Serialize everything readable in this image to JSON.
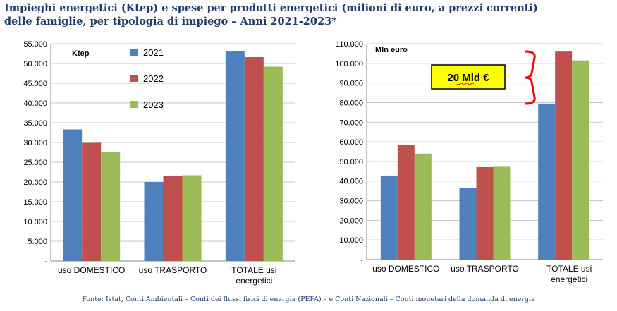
{
  "title_line1": "Impieghi energetici (Ktep) e spese per prodotti energetici (milioni di euro, a prezzi correnti)",
  "title_line2": "delle famiglie, per tipologia di impiego – Anni 2021-2023*",
  "source": "Fonte: Istat, Conti Ambientali – Conti dei flussi fisici di energia (PEFA) – e Conti Nazionali – Conti monetari della domanda di energia",
  "annotation": "20 Mld €",
  "colors": {
    "2021": "#4f81bd",
    "2022": "#c0504d",
    "2023": "#9bbb59",
    "brace": "#ff0000",
    "callout_bg": "#ffff00"
  },
  "chart_data": [
    {
      "type": "bar",
      "unit_label": "Ktep",
      "categories": [
        "uso DOMESTICO",
        "uso TRASPORTO",
        "TOTALE usi energetici"
      ],
      "series": [
        {
          "name": "2021",
          "values": [
            33300,
            20000,
            53100
          ]
        },
        {
          "name": "2022",
          "values": [
            29900,
            21600,
            51600
          ]
        },
        {
          "name": "2023",
          "values": [
            27500,
            21700,
            49200
          ]
        }
      ],
      "ylim": [
        0,
        55000
      ],
      "yticks": [
        "-",
        "5.000",
        "10.000",
        "15.000",
        "20.000",
        "25.000",
        "30.000",
        "35.000",
        "40.000",
        "45.000",
        "50.000",
        "55.000"
      ],
      "legend": "top-left",
      "grid": true
    },
    {
      "type": "bar",
      "unit_label": "Mln euro",
      "categories": [
        "uso DOMESTICO",
        "uso TRASPORTO",
        "TOTALE usi energetici"
      ],
      "series": [
        {
          "name": "2021",
          "values": [
            42800,
            36400,
            79500
          ]
        },
        {
          "name": "2022",
          "values": [
            58600,
            47100,
            106000
          ]
        },
        {
          "name": "2023",
          "values": [
            54000,
            47300,
            101500
          ]
        }
      ],
      "ylim": [
        0,
        110000
      ],
      "yticks": [
        "-",
        "10.000",
        "20.000",
        "30.000",
        "40.000",
        "50.000",
        "60.000",
        "70.000",
        "80.000",
        "90.000",
        "100.000",
        "110.000"
      ],
      "grid": true
    }
  ]
}
